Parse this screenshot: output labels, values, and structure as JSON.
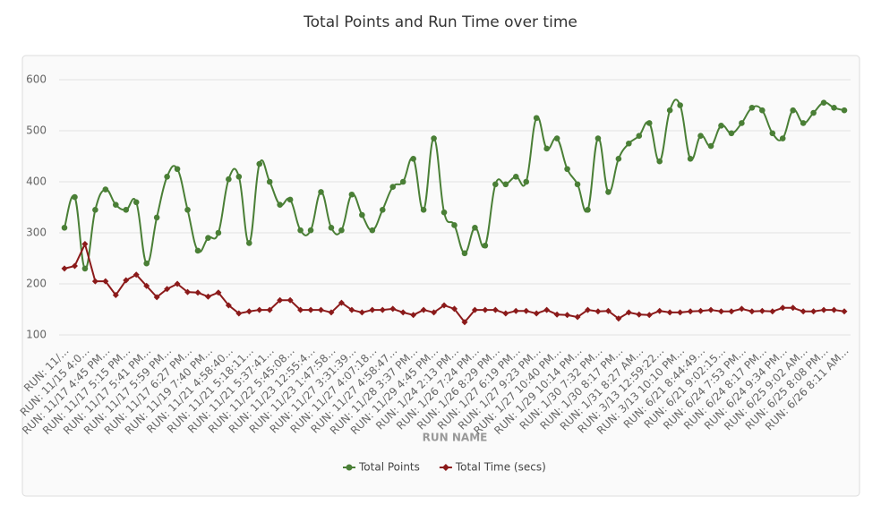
{
  "chart_data": {
    "type": "line",
    "title": "Total Points and Run Time over time",
    "x_label": "RUN NAME",
    "categories": [
      "RUN: 11/...",
      null,
      "RUN: 11/15 4:0...",
      null,
      "RUN: 11/17 4:45 PM...",
      null,
      "RUN: 11/17 5:15 PM...",
      null,
      "RUN: 11/17 5:41 PM...",
      null,
      "RUN: 11/17 5:59 PM...",
      null,
      "RUN: 11/17 6:27 PM...",
      null,
      "RUN: 11/19 7:40 PM...",
      null,
      "RUN: 11/21 4:58:40...",
      null,
      "RUN: 11/21 5:18:11...",
      null,
      "RUN: 11/21 5:37:41...",
      null,
      "RUN: 11/22 5:45:08...",
      null,
      "RUN: 11/23 12:55:4...",
      null,
      "RUN: 11/23 1:47:58...",
      null,
      "RUN: 11/27 3:31:39...",
      null,
      "RUN: 11/27 4:07:18...",
      null,
      "RUN: 11/27 4:58:47...",
      null,
      "RUN: 11/28 3:37 PM...",
      null,
      "RUN: 11/29 4:45 PM...",
      null,
      "RUN: 1/24 2:13 PM...",
      null,
      "RUN: 1/26 7:24 PM...",
      null,
      "RUN: 1/26 8:29 PM...",
      null,
      "RUN: 1/27 6:19 PM...",
      null,
      "RUN: 1/27 9:23 PM...",
      null,
      "RUN: 1/27 10:40 PM...",
      null,
      "RUN: 1/29 10:14 PM...",
      null,
      "RUN: 1/30 7:32 PM...",
      null,
      "RUN: 1/30 8:17 PM...",
      null,
      "RUN: 1/31 8:27 AM...",
      null,
      "RUN: 3/13 12:59:22...",
      null,
      "RUN: 3/13 10:10 PM...",
      null,
      "RUN: 6/21 8:44:49...",
      null,
      "RUN: 6/21 9:02:15...",
      null,
      "RUN: 6/24 7:53 PM...",
      null,
      "RUN: 6/24 8:17 PM...",
      null,
      "RUN: 6/24 9:34 PM...",
      null,
      "RUN: 6/25 9:02 AM...",
      null,
      "RUN: 6/25 8:08 PM...",
      null,
      "RUN: 6/26 8:11 AM..."
    ],
    "series": [
      {
        "name": "Total Points",
        "color": "#4a7f36",
        "marker": "circle",
        "smooth": true,
        "values": [
          310,
          370,
          230,
          345,
          385,
          355,
          345,
          360,
          240,
          330,
          410,
          425,
          345,
          265,
          290,
          300,
          405,
          410,
          280,
          435,
          400,
          355,
          365,
          305,
          305,
          380,
          310,
          305,
          375,
          335,
          305,
          345,
          390,
          400,
          445,
          345,
          485,
          340,
          315,
          260,
          310,
          275,
          395,
          395,
          410,
          400,
          525,
          465,
          485,
          425,
          395,
          345,
          485,
          380,
          445,
          475,
          490,
          515,
          440,
          540,
          550,
          445,
          490,
          470,
          510,
          495,
          515,
          545,
          540,
          495,
          485,
          540,
          515,
          535,
          555,
          545,
          540
        ]
      },
      {
        "name": "Total Time (secs)",
        "color": "#8b1a1a",
        "marker": "diamond",
        "smooth": false,
        "values": [
          230,
          235,
          278,
          205,
          205,
          178,
          207,
          218,
          196,
          174,
          190,
          200,
          184,
          183,
          175,
          183,
          158,
          142,
          146,
          149,
          149,
          168,
          168,
          149,
          149,
          149,
          144,
          163,
          149,
          144,
          149,
          149,
          151,
          144,
          139,
          149,
          144,
          158,
          151,
          125,
          149,
          149,
          149,
          142,
          147,
          147,
          142,
          149,
          140,
          139,
          135,
          149,
          146,
          147,
          132,
          144,
          140,
          139,
          147,
          144,
          144,
          146,
          147,
          149,
          146,
          146,
          151,
          146,
          147,
          146,
          153,
          153,
          146,
          146,
          149,
          149,
          146
        ]
      }
    ],
    "ylim": [
      100,
      600
    ],
    "yticks": [
      100,
      200,
      300,
      400,
      500,
      600
    ],
    "grid": true,
    "legend": "bottom"
  }
}
